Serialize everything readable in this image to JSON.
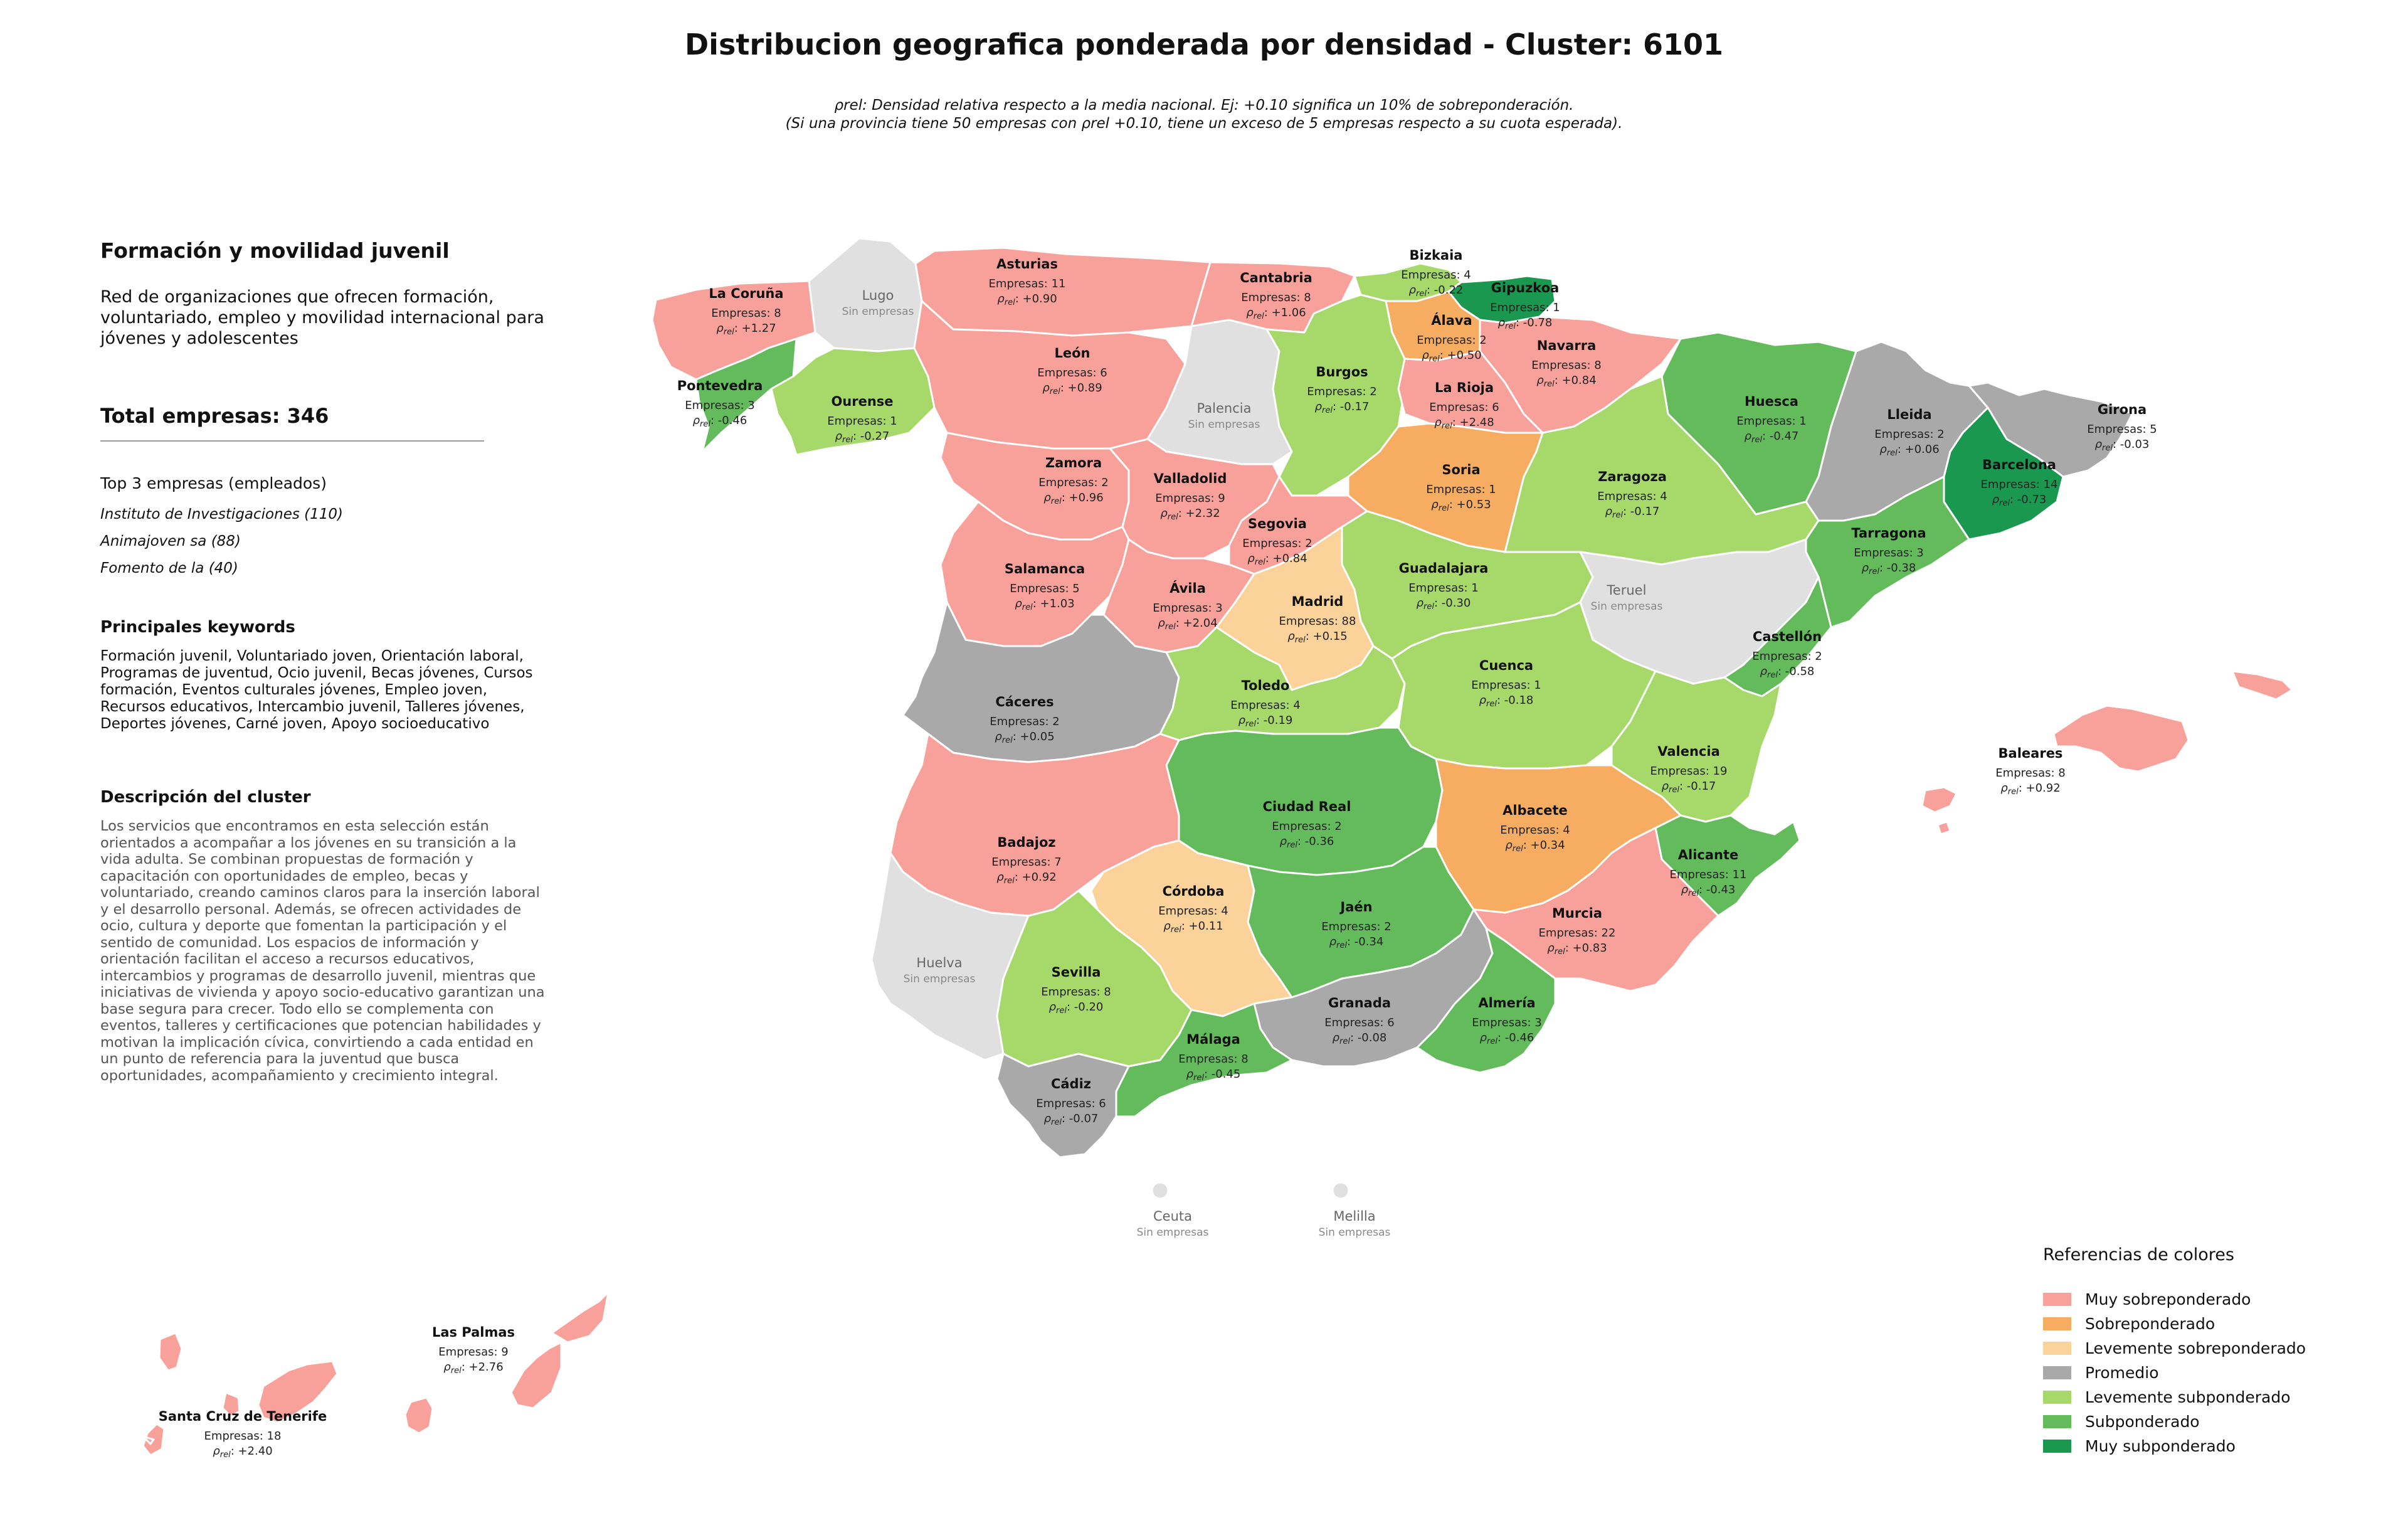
{
  "title": "Distribucion geografica ponderada por densidad - Cluster: 6101",
  "subtitle_lines": [
    "ρrel: Densidad relativa respecto a la media nacional. Ej: +0.10 significa un 10% de sobreponderación.",
    "(Si una provincia tiene 50 empresas con ρrel +0.10, tiene un exceso de 5 empresas respecto a su cuota esperada)."
  ],
  "panel": {
    "cluster_name": "Formación y movilidad juvenil",
    "cluster_description": "Red de organizaciones que ofrecen formación, voluntariado, empleo y movilidad internacional para jóvenes y adolescentes",
    "total": "Total empresas: 346",
    "top3_heading": "Top 3 empresas (empleados)",
    "top3": [
      "Instituto de Investigaciones (110)",
      "Animajoven sa (88)",
      "Fomento de la (40)"
    ],
    "keywords_heading": "Principales keywords",
    "keywords": "Formación juvenil, Voluntariado joven, Orientación laboral, Programas de juventud, Ocio juvenil, Becas jóvenes, Cursos formación, Eventos culturales jóvenes, Empleo joven, Recursos educativos, Intercambio juvenil, Talleres jóvenes, Deportes jóvenes, Carné joven, Apoyo socioeducativo",
    "description_heading": "Descripción del cluster",
    "description": "Los servicios que encontramos en esta selección están orientados a acompañar a los jóvenes en su transición a la vida adulta. Se combinan propuestas de formación y capacitación con oportunidades de empleo, becas y voluntariado, creando caminos claros para la inserción laboral y el desarrollo personal. Además, se ofrecen actividades de ocio, cultura y deporte que fomentan la participación y el sentido de comunidad. Los espacios de información y orientación facilitan el acceso a recursos educativos, intercambios y programas de desarrollo juvenil, mientras que iniciativas de vivienda y apoyo socio-educativo garantizan una base segura para crecer. Todo ello se complementa con eventos, talleres y certificaciones que potencian habilidades y motivan la implicación cívica, convirtiendo a cada entidad en un punto de referencia para la juventud que busca oportunidades, acompañamiento y crecimiento integral."
  },
  "colors": {
    "muy_sobre": "#f8a09a",
    "sobre": "#f6ad62",
    "lev_sobre": "#fbd39a",
    "promedio": "#a9a9a9",
    "lev_sub": "#a6d96a",
    "sub": "#63bb5c",
    "muy_sub": "#1a9850",
    "sin": "#e0e0e0"
  },
  "legend": {
    "title": "Referencias de colores",
    "items": [
      {
        "label": "Muy sobreponderado",
        "color": "#f8a09a"
      },
      {
        "label": "Sobreponderado",
        "color": "#f6ad62"
      },
      {
        "label": "Levemente sobreponderado",
        "color": "#fbd39a"
      },
      {
        "label": "Promedio",
        "color": "#a9a9a9"
      },
      {
        "label": "Levemente subponderado",
        "color": "#a6d96a"
      },
      {
        "label": "Subponderado",
        "color": "#63bb5c"
      },
      {
        "label": "Muy subponderado",
        "color": "#1a9850"
      }
    ]
  },
  "provinces": [
    {
      "name": "La Coruña",
      "empresas": "Empresas: 8",
      "rho": "+1.27",
      "cat": "muy_sobre"
    },
    {
      "name": "Lugo",
      "nodata": "Sin empresas",
      "cat": "sin"
    },
    {
      "name": "Asturias",
      "empresas": "Empresas: 11",
      "rho": "+0.90",
      "cat": "muy_sobre"
    },
    {
      "name": "Cantabria",
      "empresas": "Empresas: 8",
      "rho": "+1.06",
      "cat": "muy_sobre"
    },
    {
      "name": "Bizkaia",
      "empresas": "Empresas: 4",
      "rho": "-0.22",
      "cat": "lev_sub"
    },
    {
      "name": "Gipuzkoa",
      "empresas": "Empresas: 1",
      "rho": "-0.78",
      "cat": "muy_sub"
    },
    {
      "name": "Álava",
      "empresas": "Empresas: 2",
      "rho": "+0.50",
      "cat": "sobre"
    },
    {
      "name": "Navarra",
      "empresas": "Empresas: 8",
      "rho": "+0.84",
      "cat": "muy_sobre"
    },
    {
      "name": "Pontevedra",
      "empresas": "Empresas: 3",
      "rho": "-0.46",
      "cat": "sub"
    },
    {
      "name": "Ourense",
      "empresas": "Empresas: 1",
      "rho": "-0.27",
      "cat": "lev_sub"
    },
    {
      "name": "León",
      "empresas": "Empresas: 6",
      "rho": "+0.89",
      "cat": "muy_sobre"
    },
    {
      "name": "Palencia",
      "nodata": "Sin empresas",
      "cat": "sin"
    },
    {
      "name": "Burgos",
      "empresas": "Empresas: 2",
      "rho": "-0.17",
      "cat": "lev_sub"
    },
    {
      "name": "La Rioja",
      "empresas": "Empresas: 6",
      "rho": "+2.48",
      "cat": "muy_sobre"
    },
    {
      "name": "Huesca",
      "empresas": "Empresas: 1",
      "rho": "-0.47",
      "cat": "sub"
    },
    {
      "name": "Lleida",
      "empresas": "Empresas: 2",
      "rho": "+0.06",
      "cat": "promedio"
    },
    {
      "name": "Girona",
      "empresas": "Empresas: 5",
      "rho": "-0.03",
      "cat": "promedio"
    },
    {
      "name": "Barcelona",
      "empresas": "Empresas: 14",
      "rho": "-0.73",
      "cat": "muy_sub"
    },
    {
      "name": "Zamora",
      "empresas": "Empresas: 2",
      "rho": "+0.96",
      "cat": "muy_sobre"
    },
    {
      "name": "Valladolid",
      "empresas": "Empresas: 9",
      "rho": "+2.32",
      "cat": "muy_sobre"
    },
    {
      "name": "Soria",
      "empresas": "Empresas: 1",
      "rho": "+0.53",
      "cat": "sobre"
    },
    {
      "name": "Zaragoza",
      "empresas": "Empresas: 4",
      "rho": "-0.17",
      "cat": "lev_sub"
    },
    {
      "name": "Tarragona",
      "empresas": "Empresas: 3",
      "rho": "-0.38",
      "cat": "sub"
    },
    {
      "name": "Segovia",
      "empresas": "Empresas: 2",
      "rho": "+0.84",
      "cat": "muy_sobre"
    },
    {
      "name": "Salamanca",
      "empresas": "Empresas: 5",
      "rho": "+1.03",
      "cat": "muy_sobre"
    },
    {
      "name": "Guadalajara",
      "empresas": "Empresas: 1",
      "rho": "-0.30",
      "cat": "lev_sub"
    },
    {
      "name": "Teruel",
      "nodata": "Sin empresas",
      "cat": "sin"
    },
    {
      "name": "Ávila",
      "empresas": "Empresas: 3",
      "rho": "+2.04",
      "cat": "muy_sobre"
    },
    {
      "name": "Madrid",
      "empresas": "Empresas: 88",
      "rho": "+0.15",
      "cat": "lev_sobre"
    },
    {
      "name": "Castellón",
      "empresas": "Empresas: 2",
      "rho": "-0.58",
      "cat": "sub"
    },
    {
      "name": "Cáceres",
      "empresas": "Empresas: 2",
      "rho": "+0.05",
      "cat": "promedio"
    },
    {
      "name": "Toledo",
      "empresas": "Empresas: 4",
      "rho": "-0.19",
      "cat": "lev_sub"
    },
    {
      "name": "Cuenca",
      "empresas": "Empresas: 1",
      "rho": "-0.18",
      "cat": "lev_sub"
    },
    {
      "name": "Valencia",
      "empresas": "Empresas: 19",
      "rho": "-0.17",
      "cat": "lev_sub"
    },
    {
      "name": "Baleares",
      "empresas": "Empresas: 8",
      "rho": "+0.92",
      "cat": "muy_sobre"
    },
    {
      "name": "Ciudad Real",
      "empresas": "Empresas: 2",
      "rho": "-0.36",
      "cat": "sub"
    },
    {
      "name": "Albacete",
      "empresas": "Empresas: 4",
      "rho": "+0.34",
      "cat": "sobre"
    },
    {
      "name": "Badajoz",
      "empresas": "Empresas: 7",
      "rho": "+0.92",
      "cat": "muy_sobre"
    },
    {
      "name": "Alicante",
      "empresas": "Empresas: 11",
      "rho": "-0.43",
      "cat": "sub"
    },
    {
      "name": "Córdoba",
      "empresas": "Empresas: 4",
      "rho": "+0.11",
      "cat": "lev_sobre"
    },
    {
      "name": "Jaén",
      "empresas": "Empresas: 2",
      "rho": "-0.34",
      "cat": "sub"
    },
    {
      "name": "Murcia",
      "empresas": "Empresas: 22",
      "rho": "+0.83",
      "cat": "muy_sobre"
    },
    {
      "name": "Huelva",
      "nodata": "Sin empresas",
      "cat": "sin"
    },
    {
      "name": "Sevilla",
      "empresas": "Empresas: 8",
      "rho": "-0.20",
      "cat": "lev_sub"
    },
    {
      "name": "Granada",
      "empresas": "Empresas: 6",
      "rho": "-0.08",
      "cat": "promedio"
    },
    {
      "name": "Almería",
      "empresas": "Empresas: 3",
      "rho": "-0.46",
      "cat": "sub"
    },
    {
      "name": "Málaga",
      "empresas": "Empresas: 8",
      "rho": "-0.45",
      "cat": "sub"
    },
    {
      "name": "Cádiz",
      "empresas": "Empresas: 6",
      "rho": "-0.07",
      "cat": "promedio"
    },
    {
      "name": "Ceuta",
      "nodata": "Sin empresas",
      "cat": "sin"
    },
    {
      "name": "Melilla",
      "nodata": "Sin empresas",
      "cat": "sin"
    },
    {
      "name": "Las Palmas",
      "empresas": "Empresas: 9",
      "rho": "+2.76",
      "cat": "muy_sobre"
    },
    {
      "name": "Santa Cruz de Tenerife",
      "empresas": "Empresas: 18",
      "rho": "+2.40",
      "cat": "muy_sobre"
    }
  ]
}
